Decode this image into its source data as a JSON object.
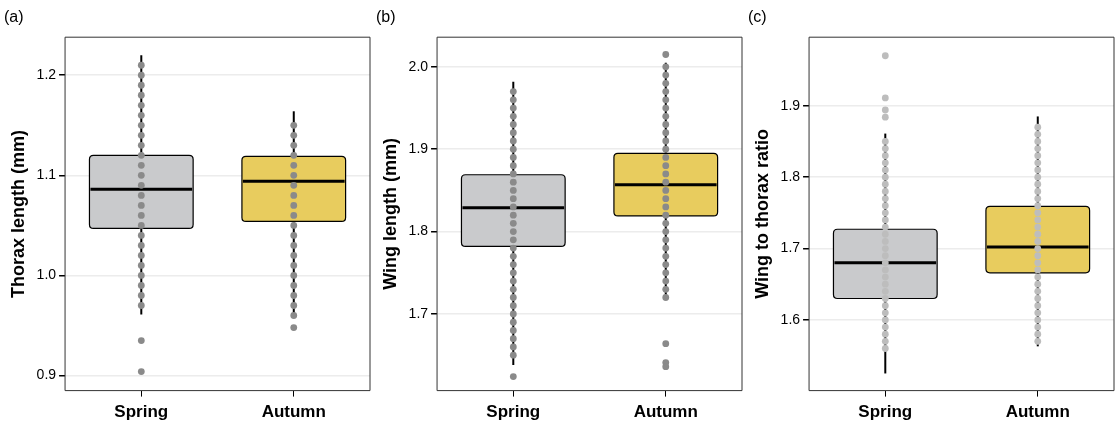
{
  "chart_data": [
    {
      "type": "box",
      "title": "(a)",
      "ylabel": "Thorax length (mm)",
      "categories": [
        "Spring",
        "Autumn"
      ],
      "colors": [
        "#c9cacc",
        "#e8cc5e"
      ],
      "ylim": [
        0.885,
        1.238
      ],
      "yticks": [
        {
          "value": 0.9,
          "label": "0.9"
        },
        {
          "value": 1.0,
          "label": "1.0"
        },
        {
          "value": 1.1,
          "label": "1.1"
        },
        {
          "value": 1.2,
          "label": "1.2"
        }
      ],
      "grid": "y",
      "boxes": [
        {
          "low": 0.961,
          "q1": 1.047,
          "median": 1.086,
          "q3": 1.12,
          "high": 1.22,
          "outliers": [
            0.935,
            0.904
          ]
        },
        {
          "low": 0.958,
          "q1": 1.054,
          "median": 1.094,
          "q3": 1.119,
          "high": 1.164,
          "outliers": [
            0.948
          ]
        }
      ],
      "series": [
        {
          "type": "scatter",
          "color": "#8a8a8a",
          "x": [
            "Spring",
            "Spring",
            "Spring",
            "Spring",
            "Spring",
            "Spring",
            "Spring",
            "Spring",
            "Spring",
            "Spring",
            "Spring",
            "Spring",
            "Spring",
            "Spring",
            "Spring",
            "Spring",
            "Spring",
            "Spring",
            "Spring",
            "Spring",
            "Spring",
            "Spring",
            "Spring",
            "Spring",
            "Spring",
            "Autumn",
            "Autumn",
            "Autumn",
            "Autumn",
            "Autumn",
            "Autumn",
            "Autumn",
            "Autumn",
            "Autumn",
            "Autumn",
            "Autumn",
            "Autumn",
            "Autumn",
            "Autumn",
            "Autumn",
            "Autumn",
            "Autumn",
            "Autumn",
            "Autumn",
            "Autumn"
          ],
          "values": [
            0.97,
            0.98,
            0.99,
            1.0,
            1.01,
            1.02,
            1.03,
            1.04,
            1.05,
            1.06,
            1.07,
            1.08,
            1.09,
            1.1,
            1.11,
            1.12,
            1.13,
            1.14,
            1.15,
            1.16,
            1.17,
            1.18,
            1.19,
            1.2,
            1.21,
            0.96,
            0.97,
            0.98,
            0.99,
            1.0,
            1.01,
            1.02,
            1.03,
            1.04,
            1.05,
            1.06,
            1.07,
            1.08,
            1.09,
            1.1,
            1.11,
            1.12,
            1.13,
            1.14,
            1.15
          ]
        }
      ]
    },
    {
      "type": "box",
      "title": "(b)",
      "ylabel": "Wing length (mm)",
      "categories": [
        "Spring",
        "Autumn"
      ],
      "colors": [
        "#c9cacc",
        "#e8cc5e"
      ],
      "ylim": [
        1.607,
        2.036
      ],
      "yticks": [
        {
          "value": 1.7,
          "label": "1.7"
        },
        {
          "value": 1.8,
          "label": "1.8"
        },
        {
          "value": 1.9,
          "label": "1.9"
        },
        {
          "value": 2.0,
          "label": "2.0"
        }
      ],
      "grid": "y",
      "boxes": [
        {
          "low": 1.638,
          "q1": 1.782,
          "median": 1.829,
          "q3": 1.869,
          "high": 1.982,
          "outliers": [
            1.624
          ]
        },
        {
          "low": 1.718,
          "q1": 1.819,
          "median": 1.857,
          "q3": 1.895,
          "high": 2.005,
          "outliers": [
            2.015,
            1.664,
            1.641,
            1.636
          ]
        }
      ],
      "series": [
        {
          "type": "scatter",
          "color": "#8a8a8a",
          "x": [
            "Spring",
            "Spring",
            "Spring",
            "Spring",
            "Spring",
            "Spring",
            "Spring",
            "Spring",
            "Spring",
            "Spring",
            "Spring",
            "Spring",
            "Spring",
            "Spring",
            "Spring",
            "Spring",
            "Spring",
            "Spring",
            "Spring",
            "Spring",
            "Spring",
            "Spring",
            "Spring",
            "Spring",
            "Spring",
            "Spring",
            "Spring",
            "Spring",
            "Spring",
            "Spring",
            "Spring",
            "Spring",
            "Spring",
            "Autumn",
            "Autumn",
            "Autumn",
            "Autumn",
            "Autumn",
            "Autumn",
            "Autumn",
            "Autumn",
            "Autumn",
            "Autumn",
            "Autumn",
            "Autumn",
            "Autumn",
            "Autumn",
            "Autumn",
            "Autumn",
            "Autumn",
            "Autumn",
            "Autumn",
            "Autumn",
            "Autumn",
            "Autumn",
            "Autumn",
            "Autumn",
            "Autumn",
            "Autumn",
            "Autumn",
            "Autumn",
            "Autumn"
          ],
          "values": [
            1.65,
            1.66,
            1.67,
            1.68,
            1.69,
            1.7,
            1.71,
            1.72,
            1.73,
            1.74,
            1.75,
            1.76,
            1.77,
            1.78,
            1.79,
            1.8,
            1.81,
            1.82,
            1.83,
            1.84,
            1.85,
            1.86,
            1.87,
            1.88,
            1.89,
            1.9,
            1.91,
            1.92,
            1.93,
            1.94,
            1.95,
            1.96,
            1.97,
            1.72,
            1.73,
            1.74,
            1.75,
            1.76,
            1.77,
            1.78,
            1.79,
            1.8,
            1.81,
            1.82,
            1.83,
            1.84,
            1.85,
            1.86,
            1.87,
            1.88,
            1.89,
            1.9,
            1.91,
            1.92,
            1.93,
            1.94,
            1.95,
            1.96,
            1.97,
            1.98,
            1.99,
            2.0
          ]
        }
      ]
    },
    {
      "type": "box",
      "title": "(c)",
      "ylabel": "Wing to thorax ratio",
      "categories": [
        "Spring",
        "Autumn"
      ],
      "colors": [
        "#c9cacc",
        "#e8cc5e"
      ],
      "ylim": [
        1.501,
        1.996
      ],
      "yticks": [
        {
          "value": 1.6,
          "label": "1.6"
        },
        {
          "value": 1.7,
          "label": "1.7"
        },
        {
          "value": 1.8,
          "label": "1.8"
        },
        {
          "value": 1.9,
          "label": "1.9"
        }
      ],
      "grid": "y",
      "boxes": [
        {
          "low": 1.525,
          "q1": 1.63,
          "median": 1.68,
          "q3": 1.727,
          "high": 1.861,
          "outliers": [
            1.97,
            1.911,
            1.894,
            1.884
          ]
        },
        {
          "low": 1.563,
          "q1": 1.666,
          "median": 1.702,
          "q3": 1.759,
          "high": 1.885
        }
      ],
      "series": [
        {
          "type": "scatter",
          "color": "#bdbdbd",
          "x": [
            "Spring",
            "Spring",
            "Spring",
            "Spring",
            "Spring",
            "Spring",
            "Spring",
            "Spring",
            "Spring",
            "Spring",
            "Spring",
            "Spring",
            "Spring",
            "Spring",
            "Spring",
            "Spring",
            "Spring",
            "Spring",
            "Spring",
            "Spring",
            "Spring",
            "Spring",
            "Spring",
            "Spring",
            "Spring",
            "Spring",
            "Spring",
            "Spring",
            "Spring",
            "Spring",
            "Autumn",
            "Autumn",
            "Autumn",
            "Autumn",
            "Autumn",
            "Autumn",
            "Autumn",
            "Autumn",
            "Autumn",
            "Autumn",
            "Autumn",
            "Autumn",
            "Autumn",
            "Autumn",
            "Autumn",
            "Autumn",
            "Autumn",
            "Autumn",
            "Autumn",
            "Autumn",
            "Autumn",
            "Autumn",
            "Autumn",
            "Autumn",
            "Autumn",
            "Autumn",
            "Autumn",
            "Autumn",
            "Autumn",
            "Autumn",
            "Autumn"
          ],
          "values": [
            1.56,
            1.57,
            1.58,
            1.59,
            1.6,
            1.61,
            1.62,
            1.63,
            1.64,
            1.65,
            1.66,
            1.67,
            1.68,
            1.69,
            1.7,
            1.71,
            1.72,
            1.73,
            1.74,
            1.75,
            1.76,
            1.77,
            1.78,
            1.79,
            1.8,
            1.81,
            1.82,
            1.83,
            1.84,
            1.85,
            1.57,
            1.58,
            1.59,
            1.6,
            1.61,
            1.62,
            1.63,
            1.64,
            1.65,
            1.66,
            1.67,
            1.68,
            1.69,
            1.7,
            1.71,
            1.72,
            1.73,
            1.74,
            1.75,
            1.76,
            1.77,
            1.78,
            1.79,
            1.8,
            1.81,
            1.82,
            1.83,
            1.84,
            1.85,
            1.86,
            1.87
          ]
        }
      ]
    }
  ]
}
